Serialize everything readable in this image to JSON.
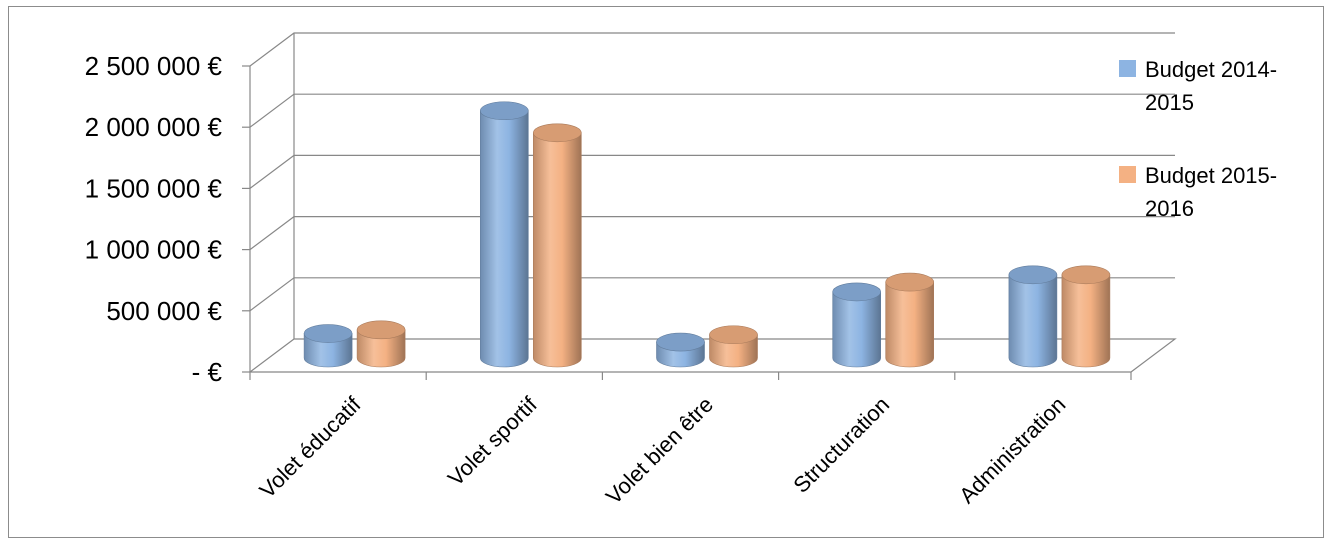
{
  "chart_data": {
    "type": "bar",
    "title": "",
    "xlabel": "",
    "ylabel": "",
    "categories": [
      "Volet éducatif",
      "Volet sportif",
      "Volet bien être",
      "Structuration",
      "Administration"
    ],
    "series": [
      {
        "name": "Budget 2014-2015",
        "color": "#8db4e2",
        "values": [
          200000,
          2020000,
          130000,
          540000,
          680000
        ]
      },
      {
        "name": "Budget 2015-2016",
        "color": "#f4b183",
        "values": [
          230000,
          1840000,
          190000,
          620000,
          680000
        ]
      }
    ],
    "y_ticks": [
      "-  €",
      "500 000 €",
      "1 000 000 €",
      "1 500 000 €",
      "2 000 000 €",
      "2 500 000 €"
    ],
    "ylim": [
      0,
      2500000
    ],
    "grid": true,
    "legend_position": "right",
    "legend_lines": [
      [
        "Budget 2014-",
        "2015"
      ],
      [
        "Budget 2015-",
        "2016"
      ]
    ]
  }
}
